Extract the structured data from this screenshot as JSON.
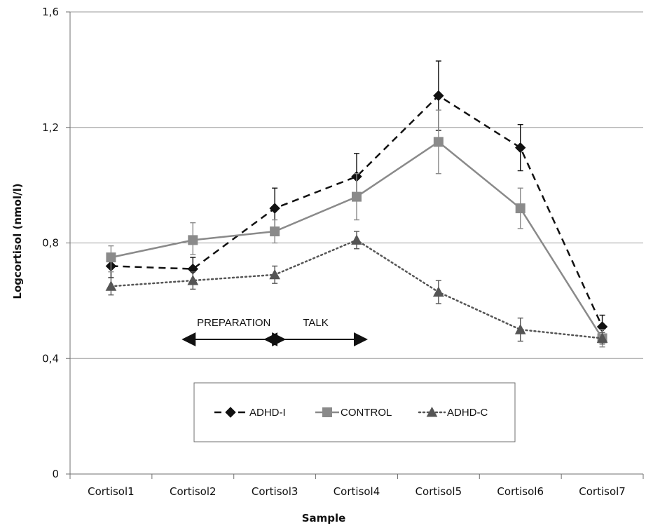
{
  "chart_data": {
    "type": "line",
    "xlabel": "Sample",
    "ylabel": "Logcortisol (nmol/l)",
    "categories": [
      "Cortisol1",
      "Cortisol2",
      "Cortisol3",
      "Cortisol4",
      "Cortisol5",
      "Cortisol6",
      "Cortisol7"
    ],
    "ylim": [
      0,
      1.6
    ],
    "yticks": [
      {
        "value": 0,
        "label": "0"
      },
      {
        "value": 0.4,
        "label": "0,4"
      },
      {
        "value": 0.8,
        "label": "0,8"
      },
      {
        "value": 1.2,
        "label": "1,2"
      },
      {
        "value": 1.6,
        "label": "1,6"
      }
    ],
    "grid": "horizontal",
    "legend_position": "bottom-center",
    "series": [
      {
        "name": "ADHD-I",
        "marker": "diamond",
        "line_style": "dashed",
        "color": "#111111",
        "values": [
          0.72,
          0.71,
          0.92,
          1.03,
          1.31,
          1.13,
          0.51
        ],
        "error_low": [
          0.68,
          0.67,
          0.85,
          0.95,
          1.19,
          1.05,
          0.47
        ],
        "error_high": [
          0.76,
          0.75,
          0.99,
          1.11,
          1.43,
          1.21,
          0.55
        ]
      },
      {
        "name": "CONTROL",
        "marker": "square",
        "line_style": "solid",
        "color": "#8a8a8a",
        "values": [
          0.75,
          0.81,
          0.84,
          0.96,
          1.15,
          0.92,
          0.47
        ],
        "error_low": [
          0.7,
          0.76,
          0.8,
          0.88,
          1.04,
          0.85,
          0.44
        ],
        "error_high": [
          0.79,
          0.87,
          0.88,
          1.04,
          1.26,
          0.99,
          0.5
        ]
      },
      {
        "name": "ADHD-C",
        "marker": "triangle",
        "line_style": "dotted",
        "color": "#555555",
        "values": [
          0.65,
          0.67,
          0.69,
          0.81,
          0.63,
          0.5,
          0.47
        ],
        "error_low": [
          0.62,
          0.64,
          0.66,
          0.78,
          0.59,
          0.46,
          0.45
        ],
        "error_high": [
          0.68,
          0.7,
          0.72,
          0.84,
          0.67,
          0.54,
          0.49
        ]
      }
    ],
    "annotations": [
      {
        "text": "PREPARATION",
        "from_category": "Cortisol2",
        "to_category": "Cortisol3"
      },
      {
        "text": "TALK",
        "from_category": "Cortisol3",
        "to_category": "Cortisol4"
      }
    ]
  }
}
